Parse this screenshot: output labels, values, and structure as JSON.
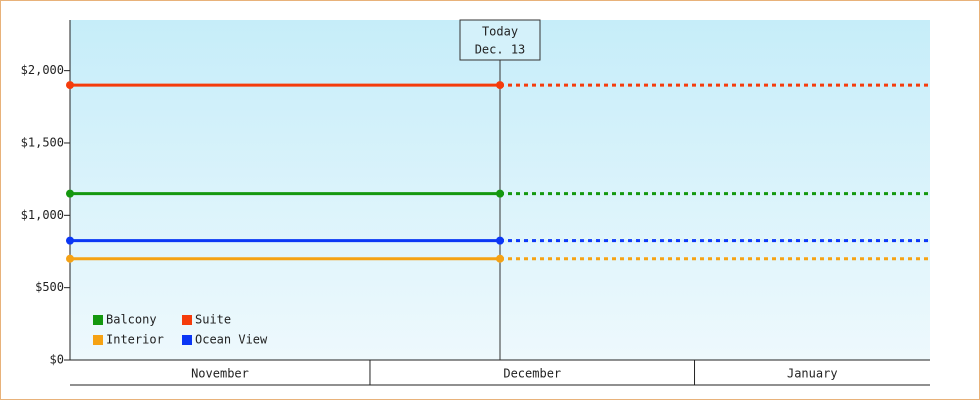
{
  "chart_data": {
    "type": "line",
    "xlim": [
      0,
      84
    ],
    "x": [
      0,
      42
    ],
    "x_band_edges": [
      0,
      29.3,
      61,
      84
    ],
    "x_band_labels": [
      "November",
      "December",
      "January"
    ],
    "today": {
      "x": 42,
      "label": "Today",
      "date": "Dec. 13"
    },
    "ylim": [
      0,
      2350
    ],
    "yticks": [
      {
        "value": 0,
        "label": "$0"
      },
      {
        "value": 500,
        "label": "$500"
      },
      {
        "value": 1000,
        "label": "$1,000"
      },
      {
        "value": 1500,
        "label": "$1,500"
      },
      {
        "value": 2000,
        "label": "$2,000"
      }
    ],
    "series": [
      {
        "name": "Balcony",
        "color": "#14980f",
        "values": [
          1150,
          1150
        ]
      },
      {
        "name": "Interior",
        "color": "#f5a214",
        "values": [
          700,
          700
        ]
      },
      {
        "name": "Suite",
        "color": "#f53c0c",
        "values": [
          1900,
          1900
        ]
      },
      {
        "name": "Ocean View",
        "color": "#0a36f5",
        "values": [
          825,
          825
        ]
      }
    ]
  }
}
